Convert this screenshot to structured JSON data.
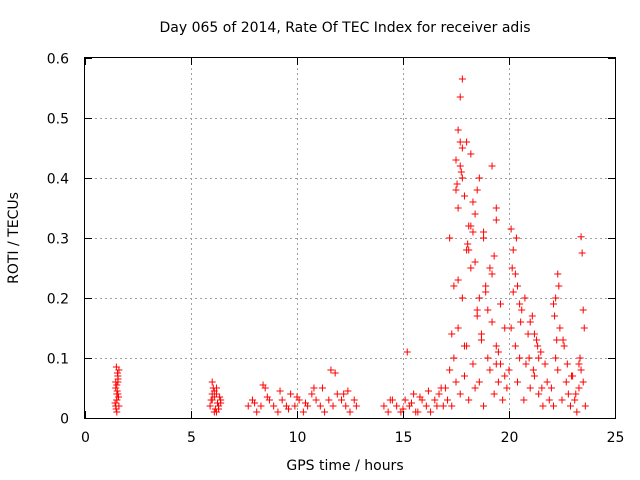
{
  "chart_data": {
    "type": "scatter",
    "title": "Day 065 of 2014, Rate Of TEC Index for receiver adis",
    "xlabel": "GPS time / hours",
    "ylabel": "ROTI / TECUs",
    "xlim": [
      0,
      25
    ],
    "ylim": [
      0,
      0.6
    ],
    "xticks": [
      0,
      5,
      10,
      15,
      20,
      25
    ],
    "yticks": [
      0,
      0.1,
      0.2,
      0.3,
      0.4,
      0.5,
      0.6
    ],
    "xtick_labels": [
      "0",
      "5",
      "10",
      "15",
      "20",
      "25"
    ],
    "ytick_labels": [
      "0",
      "0.1",
      "0.2",
      "0.3",
      "0.4",
      "0.5",
      "0.6"
    ],
    "grid": true,
    "marker": "+",
    "color": "#ff0000",
    "series": [
      {
        "name": "ROTI",
        "x": [
          1.45,
          1.5,
          1.55,
          1.6,
          1.5,
          1.45,
          1.55,
          1.6,
          1.5,
          1.48,
          1.52,
          1.58,
          1.42,
          1.56,
          1.5,
          1.47,
          1.53,
          1.5,
          1.55,
          1.45,
          5.9,
          6.0,
          6.1,
          6.2,
          6.3,
          6.4,
          6.05,
          6.15,
          6.25,
          6.35,
          6.0,
          6.2,
          6.1,
          6.3,
          5.95,
          6.4,
          6.2,
          6.1,
          6.0,
          6.3,
          7.7,
          7.9,
          8.1,
          8.3,
          8.5,
          8.7,
          8.9,
          9.1,
          9.3,
          9.5,
          9.7,
          9.9,
          10.1,
          10.3,
          10.5,
          10.7,
          10.9,
          11.1,
          11.3,
          11.5,
          11.7,
          11.9,
          12.1,
          12.3,
          12.5,
          12.7,
          8.4,
          9.2,
          10.0,
          10.8,
          11.6,
          12.4,
          8.0,
          9.6,
          11.2,
          12.8,
          8.6,
          10.4,
          11.8,
          12.2,
          14.1,
          14.3,
          14.5,
          14.7,
          14.9,
          15.1,
          15.3,
          15.5,
          15.7,
          15.9,
          16.1,
          16.3,
          16.5,
          16.7,
          16.9,
          15.0,
          15.4,
          15.8,
          16.2,
          16.6,
          14.4,
          15.6,
          16.8,
          15.2,
          17.0,
          17.1,
          17.2,
          17.3,
          17.4,
          17.5,
          17.6,
          17.7,
          17.8,
          17.9,
          18.0,
          18.1,
          18.2,
          18.3,
          18.4,
          18.5,
          18.6,
          18.7,
          18.8,
          18.9,
          19.0,
          19.1,
          19.2,
          19.3,
          19.4,
          19.5,
          19.6,
          19.7,
          19.8,
          19.9,
          17.2,
          17.4,
          17.6,
          17.8,
          18.0,
          18.2,
          18.4,
          18.6,
          18.8,
          19.0,
          19.2,
          19.4,
          19.6,
          19.8,
          17.5,
          17.7,
          17.9,
          18.1,
          18.3,
          18.5,
          18.7,
          18.9,
          19.1,
          19.3,
          19.5,
          17.3,
          17.6,
          18.2,
          18.8,
          19.4,
          17.8,
          17.7,
          17.6,
          17.7,
          17.8,
          17.5,
          18.6,
          18.5,
          19.2,
          19.4,
          18.0,
          17.9,
          18.1,
          18.4,
          18.3,
          17.55,
          17.75,
          18.05,
          20.0,
          20.1,
          20.2,
          20.3,
          20.4,
          20.5,
          20.6,
          20.7,
          20.8,
          20.9,
          21.0,
          21.1,
          21.2,
          21.3,
          21.4,
          21.5,
          21.6,
          21.7,
          21.8,
          21.9,
          20.15,
          20.35,
          20.55,
          20.75,
          20.95,
          21.15,
          21.35,
          21.55,
          20.1,
          20.2,
          20.3,
          20.4,
          20.5,
          21.0,
          21.2,
          21.4,
          22.0,
          22.1,
          22.2,
          22.3,
          22.4,
          22.5,
          22.6,
          22.7,
          22.8,
          22.9,
          23.0,
          23.1,
          23.2,
          23.3,
          23.4,
          23.5,
          23.6,
          22.15,
          22.35,
          22.55,
          22.75,
          22.95,
          23.15,
          23.35,
          23.55,
          22.2,
          22.3,
          22.1,
          23.4,
          23.45,
          23.5,
          22.25,
          23.3
        ],
        "y": [
          0.02,
          0.04,
          0.06,
          0.08,
          0.03,
          0.05,
          0.07,
          0.02,
          0.01,
          0.085,
          0.045,
          0.035,
          0.025,
          0.065,
          0.055,
          0.015,
          0.075,
          0.03,
          0.04,
          0.06,
          0.02,
          0.03,
          0.01,
          0.04,
          0.02,
          0.03,
          0.05,
          0.015,
          0.025,
          0.035,
          0.06,
          0.01,
          0.045,
          0.02,
          0.03,
          0.025,
          0.05,
          0.035,
          0.04,
          0.015,
          0.02,
          0.03,
          0.01,
          0.02,
          0.05,
          0.03,
          0.02,
          0.01,
          0.03,
          0.02,
          0.04,
          0.02,
          0.03,
          0.01,
          0.02,
          0.04,
          0.03,
          0.02,
          0.01,
          0.03,
          0.02,
          0.04,
          0.03,
          0.02,
          0.01,
          0.03,
          0.055,
          0.045,
          0.035,
          0.05,
          0.08,
          0.045,
          0.025,
          0.015,
          0.05,
          0.02,
          0.035,
          0.025,
          0.075,
          0.04,
          0.02,
          0.01,
          0.03,
          0.02,
          0.01,
          0.03,
          0.02,
          0.04,
          0.01,
          0.03,
          0.02,
          0.01,
          0.03,
          0.04,
          0.02,
          0.015,
          0.025,
          0.035,
          0.045,
          0.02,
          0.03,
          0.01,
          0.05,
          0.11,
          0.05,
          0.03,
          0.08,
          0.02,
          0.1,
          0.06,
          0.15,
          0.04,
          0.2,
          0.07,
          0.12,
          0.03,
          0.25,
          0.09,
          0.05,
          0.18,
          0.06,
          0.14,
          0.02,
          0.22,
          0.1,
          0.08,
          0.16,
          0.04,
          0.12,
          0.06,
          0.09,
          0.03,
          0.07,
          0.05,
          0.3,
          0.22,
          0.35,
          0.4,
          0.28,
          0.32,
          0.26,
          0.2,
          0.3,
          0.18,
          0.24,
          0.33,
          0.19,
          0.15,
          0.38,
          0.42,
          0.12,
          0.28,
          0.36,
          0.17,
          0.13,
          0.21,
          0.25,
          0.27,
          0.11,
          0.14,
          0.23,
          0.44,
          0.31,
          0.09,
          0.565,
          0.535,
          0.48,
          0.46,
          0.45,
          0.43,
          0.4,
          0.38,
          0.42,
          0.35,
          0.46,
          0.37,
          0.32,
          0.34,
          0.31,
          0.39,
          0.41,
          0.29,
          0.08,
          0.15,
          0.21,
          0.12,
          0.06,
          0.1,
          0.18,
          0.03,
          0.09,
          0.14,
          0.05,
          0.17,
          0.07,
          0.13,
          0.04,
          0.11,
          0.02,
          0.09,
          0.06,
          0.03,
          0.25,
          0.3,
          0.16,
          0.2,
          0.1,
          0.08,
          0.12,
          0.05,
          0.315,
          0.28,
          0.24,
          0.22,
          0.19,
          0.16,
          0.14,
          0.1,
          0.05,
          0.02,
          0.1,
          0.08,
          0.15,
          0.03,
          0.12,
          0.06,
          0.04,
          0.02,
          0.07,
          0.03,
          0.01,
          0.05,
          0.08,
          0.06,
          0.02,
          0.17,
          0.22,
          0.13,
          0.09,
          0.07,
          0.04,
          0.1,
          0.15,
          0.2,
          0.24,
          0.19,
          0.302,
          0.275,
          0.18,
          0.13,
          0.09
        ]
      }
    ]
  }
}
